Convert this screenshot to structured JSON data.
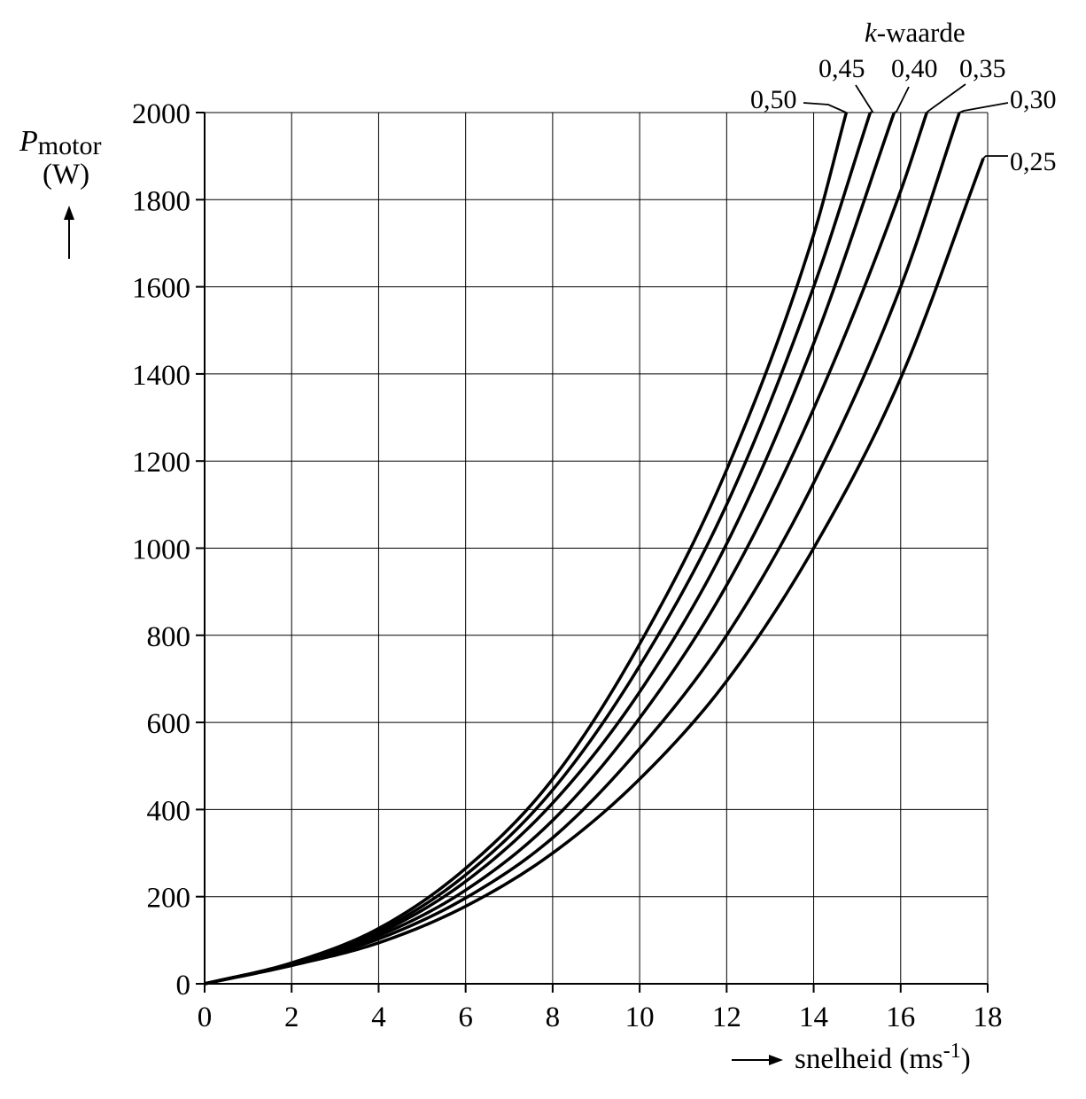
{
  "chart_data": {
    "type": "line",
    "title": "",
    "xlabel": "snelheid (ms",
    "xlabel_unit_sup": "-1",
    "xlabel_close": ")",
    "ylabel_symbol": "P",
    "ylabel_sub": "motor",
    "ylabel_unit": "(W)",
    "legend_title_italic": "k",
    "legend_title_rest": "-waarde",
    "xlim": [
      0,
      18
    ],
    "ylim": [
      0,
      2000
    ],
    "xticks": [
      "0",
      "2",
      "4",
      "6",
      "8",
      "10",
      "12",
      "14",
      "16",
      "18"
    ],
    "yticks": [
      "0",
      "200",
      "400",
      "600",
      "800",
      "1000",
      "1200",
      "1400",
      "1600",
      "1800",
      "2000"
    ],
    "grid": true,
    "legend_placement": "top-right, labels at curve ends",
    "series": [
      {
        "name": "0,25",
        "x": [
          0,
          2,
          4,
          6,
          8,
          10,
          12,
          14,
          16,
          17.9
        ],
        "y": [
          0,
          42,
          94,
          178,
          300,
          470,
          695,
          1000,
          1390,
          1895
        ]
      },
      {
        "name": "0,30",
        "x": [
          0,
          2,
          4,
          6,
          8,
          10,
          12,
          14,
          16,
          17.35
        ],
        "y": [
          0,
          44,
          103,
          197,
          335,
          540,
          800,
          1150,
          1600,
          2000
        ]
      },
      {
        "name": "0,35",
        "x": [
          0,
          2,
          4,
          6,
          8,
          10,
          12,
          14,
          16,
          16.6
        ],
        "y": [
          0,
          45,
          110,
          215,
          375,
          610,
          915,
          1320,
          1820,
          2000
        ]
      },
      {
        "name": "0,40",
        "x": [
          0,
          2,
          4,
          6,
          8,
          10,
          12,
          14,
          15.85
        ],
        "y": [
          0,
          46,
          116,
          235,
          415,
          670,
          1010,
          1470,
          2000
        ]
      },
      {
        "name": "0,45",
        "x": [
          0,
          2,
          4,
          6,
          8,
          10,
          12,
          14,
          15.3
        ],
        "y": [
          0,
          47,
          121,
          250,
          445,
          730,
          1100,
          1600,
          2000
        ]
      },
      {
        "name": "0,50",
        "x": [
          0,
          2,
          4,
          6,
          8,
          10,
          12,
          14,
          14.75
        ],
        "y": [
          0,
          48,
          127,
          265,
          470,
          780,
          1180,
          1720,
          2000
        ]
      }
    ]
  }
}
